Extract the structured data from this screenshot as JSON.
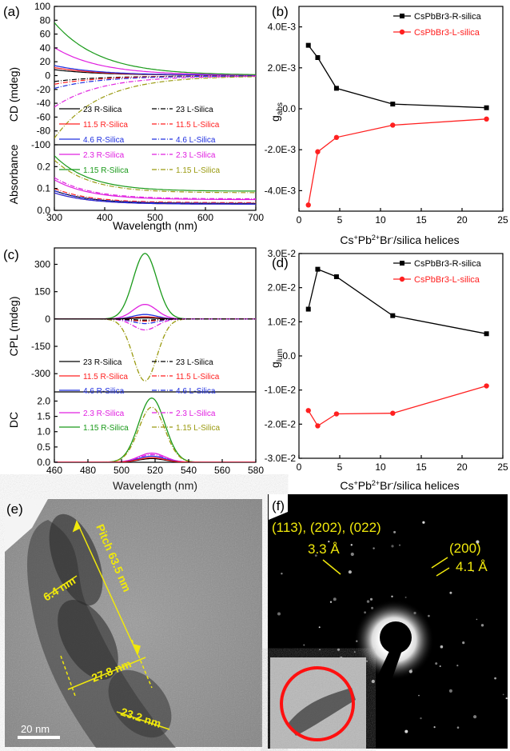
{
  "panel_labels": {
    "a": "(a)",
    "b": "(b)",
    "c": "(c)",
    "d": "(d)",
    "e": "(e)",
    "f": "(f)"
  },
  "colors": {
    "s23": "#000000",
    "s115": "#ff2020",
    "s46": "#2030e0",
    "s23b": "#e020e0",
    "s115b": "#1a9a1a",
    "s115L": "#9a9a10"
  },
  "legend_cd": [
    {
      "r": "23    R-Silica",
      "l": "23    L-Silica",
      "color": "#000000",
      "lcolor": "#000000"
    },
    {
      "r": "11.5  R-Silica",
      "l": "11.5  L-Silica",
      "color": "#ff2020",
      "lcolor": "#ff2020"
    },
    {
      "r": "4.6   R-Silica",
      "l": "4.6   L-Silica",
      "color": "#2030e0",
      "lcolor": "#2030e0"
    },
    {
      "r": "2.3   R-Silica",
      "l": "2.3   L-Silica",
      "color": "#e020e0",
      "lcolor": "#e020e0"
    },
    {
      "r": "1.15  R-Silica",
      "l": "1.15  L-Silica",
      "color": "#1a9a1a",
      "lcolor": "#9a9a10"
    }
  ],
  "chart_data": [
    {
      "panel": "a",
      "type": "line",
      "xlabel": "Wavelength (nm)",
      "ylabel_top": "CD (mdeg)",
      "ylabel_bottom": "Absorbance",
      "xlim": [
        300,
        700
      ],
      "ylim_top": [
        -100,
        100
      ],
      "x_ticks": [
        "300",
        "400",
        "500",
        "600",
        "700"
      ],
      "y_ticks_top": [
        "100",
        "80",
        "60",
        "40",
        "20",
        "0",
        "-20",
        "-40",
        "-60",
        "-80",
        "-100"
      ],
      "y_ticks_bottom": [
        "0.2",
        "0.1",
        "0.0"
      ],
      "series_cd_start": {
        "23 R": 8,
        "11.5 R": 11,
        "4.6 R": 14,
        "2.3 R": 40,
        "1.15 R": 76,
        "23 L": -8,
        "11.5 L": -12,
        "4.6 L": -18,
        "2.3 L": -45,
        "1.15 L": -90
      },
      "series_abs_start": {
        "23 R": 0.09,
        "11.5 R": 0.08,
        "4.6 R": 0.08,
        "2.3 R": 0.14,
        "1.15 R": 0.25,
        "23 L": 0.09,
        "11.5 L": 0.1,
        "4.6 L": 0.09,
        "2.3 L": 0.15,
        "1.15 L": 0.23
      }
    },
    {
      "panel": "b",
      "type": "line",
      "xlabel": "Cs⁺Pb²⁺Br⁻/silica helices",
      "ylabel": "g_abs",
      "xlim": [
        0,
        25
      ],
      "ylim": [
        -0.005,
        0.005
      ],
      "x_ticks": [
        "0",
        "5",
        "10",
        "15",
        "20",
        "25"
      ],
      "y_ticks": [
        "4.0E-3",
        "2.0E-3",
        "0.0",
        "-2.0E-3",
        "-4.0E-3"
      ],
      "x": [
        1.15,
        2.3,
        4.6,
        11.5,
        23
      ],
      "series": [
        {
          "name": "CsPbBr3-R-silica",
          "color": "#000000",
          "values": [
            0.0031,
            0.0025,
            0.001,
            0.00023,
            5e-05
          ]
        },
        {
          "name": "CsPbBr3-L-silica",
          "color": "#ff2020",
          "values": [
            -0.0047,
            -0.0021,
            -0.0014,
            -0.0008,
            -0.0005
          ]
        }
      ]
    },
    {
      "panel": "c",
      "type": "line",
      "xlabel": "Wavelength (nm)",
      "ylabel_top": "CPL (mdeg)",
      "ylabel_bottom": "DC",
      "xlim": [
        460,
        580
      ],
      "x_ticks": [
        "460",
        "480",
        "500",
        "520",
        "540",
        "560",
        "580"
      ],
      "y_ticks_top": [
        "300",
        "150",
        "0",
        "-150",
        "-300"
      ],
      "y_ticks_bottom": [
        "2.0",
        "1.5",
        "1.0",
        "0.5",
        "0.0"
      ],
      "cpl_peak": {
        "1.15 R": 360,
        "2.3 R": 80,
        "4.6 R": 25,
        "11.5 R": 12,
        "23 R": 6,
        "1.15 L": -340,
        "2.3 L": -60,
        "4.6 L": -25,
        "11.5 L": -12,
        "23 L": -6
      },
      "dc_peak": {
        "1.15 R": 2.1,
        "1.15 L": 1.8,
        "2.3 R": 0.3,
        "2.3 L": 0.25,
        "4.6": 0.2,
        "11.5": 0.15,
        "23": 0.12
      }
    },
    {
      "panel": "d",
      "type": "line",
      "xlabel": "Cs⁺Pb²⁺Br⁻/silica helices",
      "ylabel": "g_lum",
      "xlim": [
        0,
        25
      ],
      "ylim": [
        -0.03,
        0.03
      ],
      "x_ticks": [
        "0",
        "5",
        "10",
        "15",
        "20",
        "25"
      ],
      "y_ticks": [
        "3.0E-2",
        "2.0E-2",
        "1.0E-2",
        "0.0",
        "-1.0E-2",
        "-2.0E-2",
        "-3.0E-2"
      ],
      "x": [
        1.15,
        2.3,
        4.6,
        11.5,
        23
      ],
      "series": [
        {
          "name": "CsPbBr3-R-silica",
          "color": "#000000",
          "values": [
            0.0137,
            0.0254,
            0.0232,
            0.0118,
            0.0065
          ]
        },
        {
          "name": "CsPbBr3-L-silica",
          "color": "#ff2020",
          "values": [
            -0.016,
            -0.0205,
            -0.017,
            -0.0168,
            -0.0088
          ]
        }
      ]
    }
  ],
  "tem": {
    "pitch": "Pitch 63.5 nm",
    "width1": "6.4 nm",
    "width2": "27.8 nm",
    "width3": "23.2 nm",
    "scale": "20 nm"
  },
  "saed": {
    "planes1": "(113), (202), (022)",
    "d1": "3.3 Å",
    "planes2": "(200)",
    "d2": "4.1 Å"
  }
}
